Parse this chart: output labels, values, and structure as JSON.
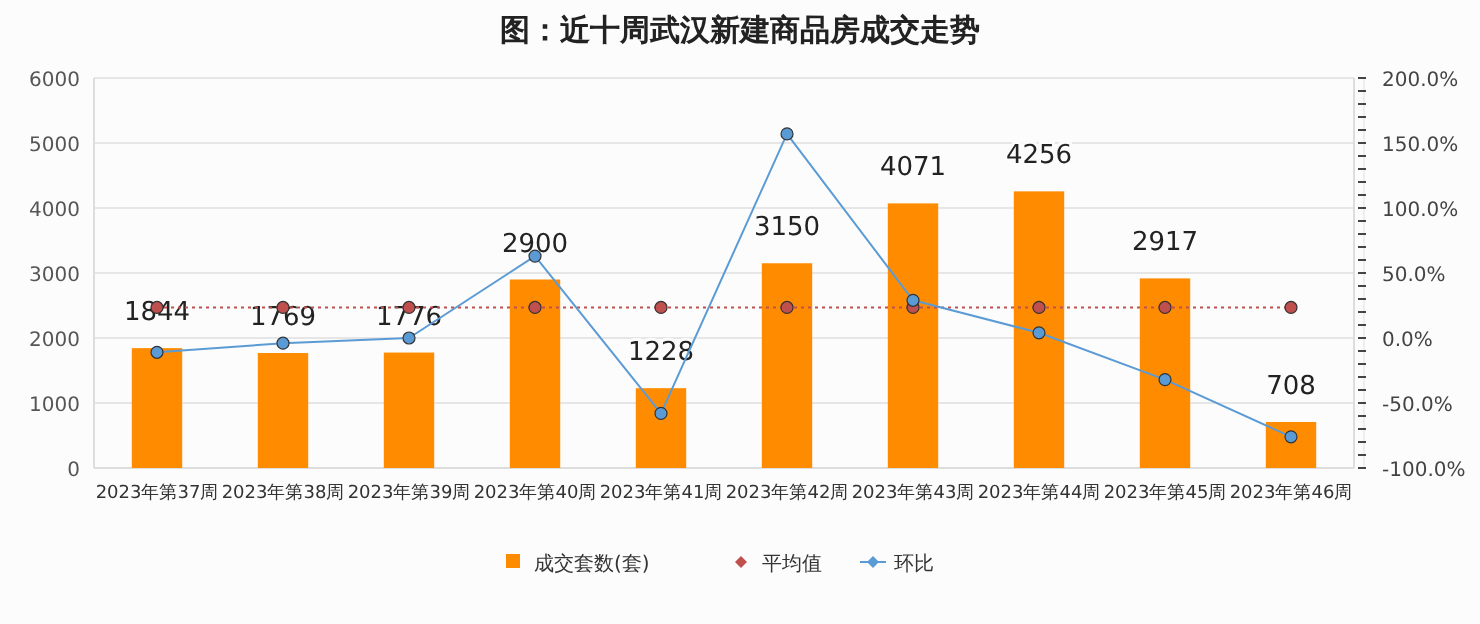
{
  "chart_data": {
    "type": "bar",
    "title": "图：近十周武汉新建商品房成交走势",
    "categories": [
      "2023年第37周",
      "2023年第38周",
      "2023年第39周",
      "2023年第40周",
      "2023年第41周",
      "2023年第42周",
      "2023年第43周",
      "2023年第44周",
      "2023年第45周",
      "2023年第46周"
    ],
    "series": [
      {
        "name": "成交套数(套)",
        "color": "#ff8c00",
        "values": [
          1844,
          1769,
          1776,
          2900,
          1228,
          3150,
          4071,
          4256,
          2917,
          708
        ],
        "data_labels": true
      },
      {
        "name": "平均值",
        "type": "line",
        "color": "#c0504d",
        "line_style": "dotted",
        "marker": "circle",
        "values": [
          2470,
          2470,
          2470,
          2470,
          2470,
          2470,
          2470,
          2470,
          2470,
          2470
        ]
      },
      {
        "name": "环比",
        "type": "line",
        "color": "#5b9bd5",
        "line_style": "solid",
        "marker": "circle",
        "axis": "y2",
        "values": [
          -11,
          -4,
          0,
          63,
          -58,
          157,
          29,
          4,
          -32,
          -76
        ]
      }
    ],
    "ylim": [
      0,
      6000
    ],
    "yticks": [
      0,
      1000,
      2000,
      3000,
      4000,
      5000,
      6000
    ],
    "y2lim": [
      -100,
      200
    ],
    "y2ticks": [
      {
        "value": -100,
        "label": "-100.0%"
      },
      {
        "value": -90,
        "label": null
      },
      {
        "value": -80,
        "label": null
      },
      {
        "value": -70,
        "label": null
      },
      {
        "value": -60,
        "label": null
      },
      {
        "value": -50,
        "label": "-50.0%"
      },
      {
        "value": -40,
        "label": null
      },
      {
        "value": -30,
        "label": null
      },
      {
        "value": -20,
        "label": null
      },
      {
        "value": -10,
        "label": null
      },
      {
        "value": 0,
        "label": "0.0%"
      },
      {
        "value": 10,
        "label": null
      },
      {
        "value": 20,
        "label": null
      },
      {
        "value": 30,
        "label": null
      },
      {
        "value": 40,
        "label": null
      },
      {
        "value": 50,
        "label": "50.0%"
      },
      {
        "value": 60,
        "label": null
      },
      {
        "value": 70,
        "label": null
      },
      {
        "value": 80,
        "label": null
      },
      {
        "value": 90,
        "label": null
      },
      {
        "value": 100,
        "label": "100.0%"
      },
      {
        "value": 110,
        "label": null
      },
      {
        "value": 120,
        "label": null
      },
      {
        "value": 130,
        "label": null
      },
      {
        "value": 140,
        "label": null
      },
      {
        "value": 150,
        "label": "150.0%"
      },
      {
        "value": 160,
        "label": null
      },
      {
        "value": 170,
        "label": null
      },
      {
        "value": 180,
        "label": null
      },
      {
        "value": 190,
        "label": null
      },
      {
        "value": 200,
        "label": "200.0%"
      }
    ],
    "grid": "y",
    "legend": "bottom"
  }
}
